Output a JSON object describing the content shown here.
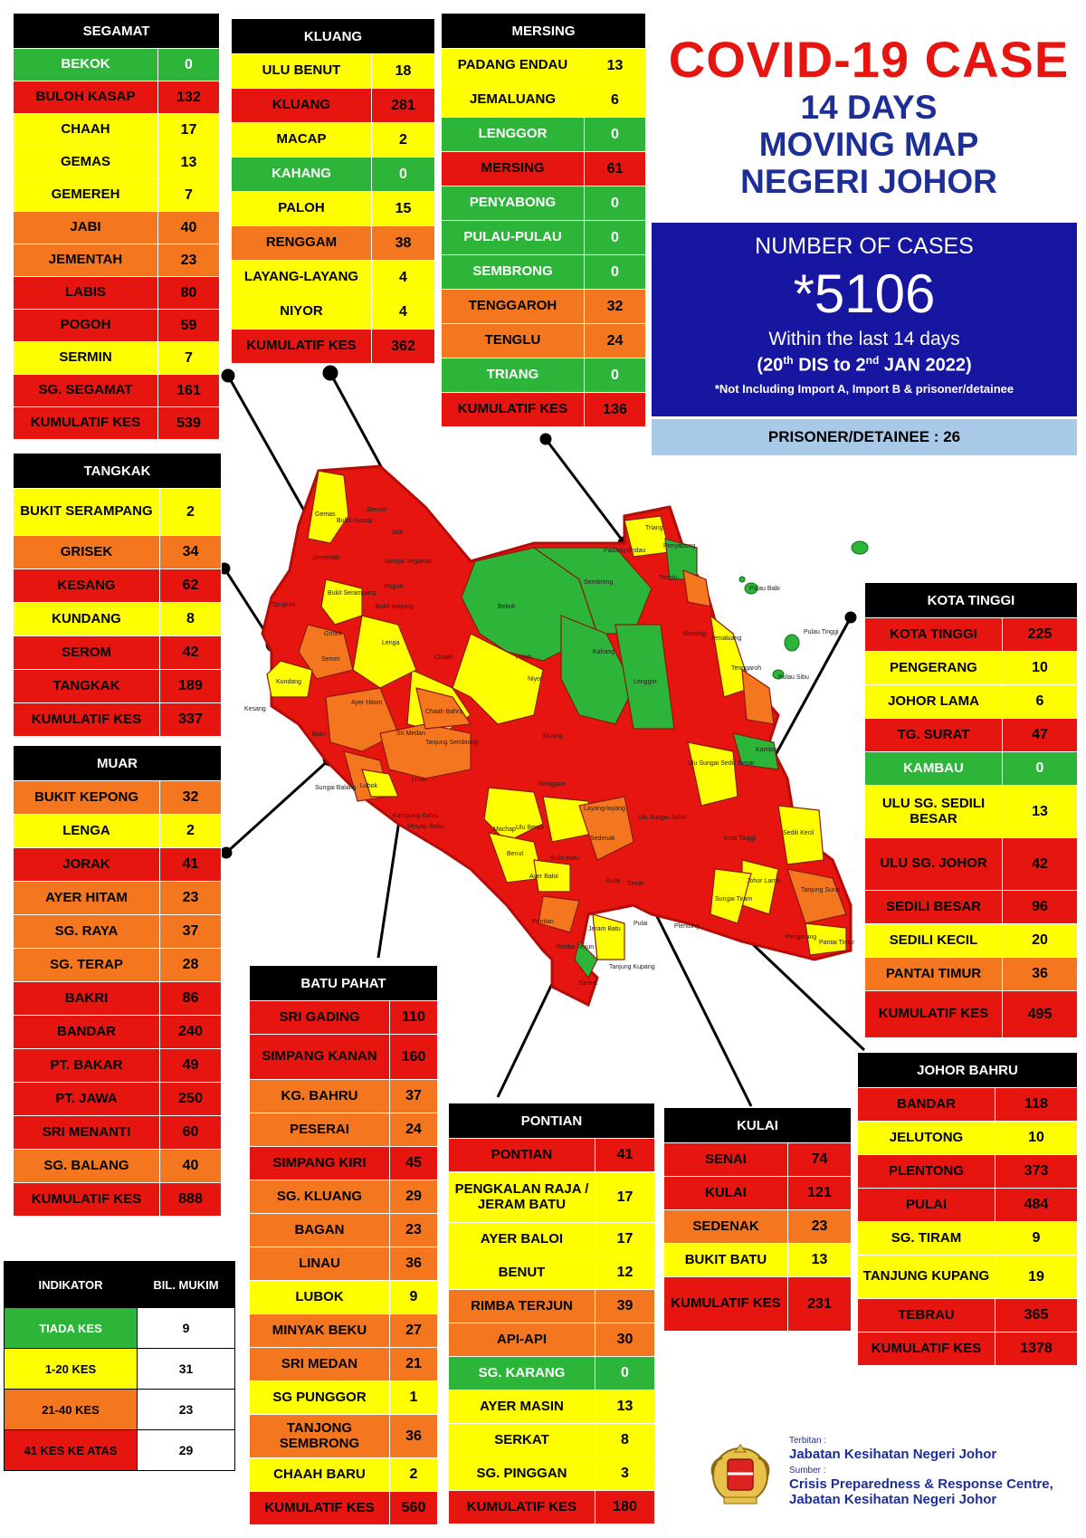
{
  "title": {
    "main": "COVID-19 CASE",
    "line2": "14 DAYS",
    "line3": "MOVING MAP",
    "line4": "NEGERI JOHOR"
  },
  "summary": {
    "label": "NUMBER OF CASES",
    "total": "*5106",
    "period": "Within the last 14 days",
    "date_start_day": "20",
    "date_start_suffix": "th",
    "date_start_month": "DIS to 2",
    "date_end_suffix": "nd",
    "date_end_month": "JAN 2022)",
    "date_open": "(",
    "note": "*Not Including Import A, Import B & prisoner/detainee",
    "prisoner": "PRISONER/DETAINEE : 26"
  },
  "level_colors": {
    "0": "#2db53a",
    "1": "#ffff00",
    "2": "#f47720",
    "3": "#e6150f"
  },
  "districts": {
    "segamat": {
      "name": "SEGAMAT",
      "rows": [
        {
          "n": "BEKOK",
          "v": "0"
        },
        {
          "n": "BULOH KASAP",
          "v": "132"
        },
        {
          "n": "CHAAH",
          "v": "17"
        },
        {
          "n": "GEMAS",
          "v": "13"
        },
        {
          "n": "GEMEREH",
          "v": "7"
        },
        {
          "n": "JABI",
          "v": "40"
        },
        {
          "n": "JEMENTAH",
          "v": "23"
        },
        {
          "n": "LABIS",
          "v": "80"
        },
        {
          "n": "POGOH",
          "v": "59"
        },
        {
          "n": "SERMIN",
          "v": "7"
        },
        {
          "n": "SG. SEGAMAT",
          "v": "161"
        },
        {
          "n": "KUMULATIF KES",
          "v": "539"
        }
      ]
    },
    "kluang": {
      "name": "KLUANG",
      "rows": [
        {
          "n": "ULU BENUT",
          "v": "18"
        },
        {
          "n": "KLUANG",
          "v": "281"
        },
        {
          "n": "MACAP",
          "v": "2"
        },
        {
          "n": "KAHANG",
          "v": "0"
        },
        {
          "n": "PALOH",
          "v": "15"
        },
        {
          "n": "RENGGAM",
          "v": "38"
        },
        {
          "n": "LAYANG-LAYANG",
          "v": "4"
        },
        {
          "n": "NIYOR",
          "v": "4"
        },
        {
          "n": "KUMULATIF KES",
          "v": "362"
        }
      ]
    },
    "mersing": {
      "name": "MERSING",
      "rows": [
        {
          "n": "PADANG ENDAU",
          "v": "13"
        },
        {
          "n": "JEMALUANG",
          "v": "6"
        },
        {
          "n": "LENGGOR",
          "v": "0"
        },
        {
          "n": "MERSING",
          "v": "61"
        },
        {
          "n": "PENYABONG",
          "v": "0"
        },
        {
          "n": "PULAU-PULAU",
          "v": "0"
        },
        {
          "n": "SEMBRONG",
          "v": "0"
        },
        {
          "n": "TENGGAROH",
          "v": "32"
        },
        {
          "n": "TENGLU",
          "v": "24"
        },
        {
          "n": "TRIANG",
          "v": "0"
        },
        {
          "n": "KUMULATIF KES",
          "v": "136"
        }
      ]
    },
    "tangkak": {
      "name": "TANGKAK",
      "rows": [
        {
          "n": "BUKIT SERAMPANG",
          "v": "2"
        },
        {
          "n": "GRISEK",
          "v": "34"
        },
        {
          "n": "KESANG",
          "v": "62"
        },
        {
          "n": "KUNDANG",
          "v": "8"
        },
        {
          "n": "SEROM",
          "v": "42"
        },
        {
          "n": "TANGKAK",
          "v": "189"
        },
        {
          "n": "KUMULATIF KES",
          "v": "337"
        }
      ]
    },
    "muar": {
      "name": "MUAR",
      "rows": [
        {
          "n": "BUKIT KEPONG",
          "v": "32"
        },
        {
          "n": "LENGA",
          "v": "2"
        },
        {
          "n": "JORAK",
          "v": "41"
        },
        {
          "n": "AYER HITAM",
          "v": "23"
        },
        {
          "n": "SG. RAYA",
          "v": "37"
        },
        {
          "n": "SG. TERAP",
          "v": "28"
        },
        {
          "n": "BAKRI",
          "v": "86"
        },
        {
          "n": "BANDAR",
          "v": "240"
        },
        {
          "n": "PT. BAKAR",
          "v": "49"
        },
        {
          "n": "PT. JAWA",
          "v": "250"
        },
        {
          "n": "SRI MENANTI",
          "v": "60"
        },
        {
          "n": "SG. BALANG",
          "v": "40"
        },
        {
          "n": "KUMULATIF KES",
          "v": "888"
        }
      ]
    },
    "batu_pahat": {
      "name": "BATU PAHAT",
      "rows": [
        {
          "n": "SRI GADING",
          "v": "110"
        },
        {
          "n": "SIMPANG KANAN",
          "v": "160"
        },
        {
          "n": "KG. BAHRU",
          "v": "37"
        },
        {
          "n": "PESERAI",
          "v": "24"
        },
        {
          "n": "SIMPANG KIRI",
          "v": "45"
        },
        {
          "n": "SG. KLUANG",
          "v": "29"
        },
        {
          "n": "BAGAN",
          "v": "23"
        },
        {
          "n": "LINAU",
          "v": "36"
        },
        {
          "n": "LUBOK",
          "v": "9"
        },
        {
          "n": "MINYAK BEKU",
          "v": "27"
        },
        {
          "n": "SRI MEDAN",
          "v": "21"
        },
        {
          "n": "SG PUNGGOR",
          "v": "1"
        },
        {
          "n": "TANJONG SEMBRONG",
          "v": "36"
        },
        {
          "n": "CHAAH BARU",
          "v": "2"
        },
        {
          "n": "KUMULATIF KES",
          "v": "560"
        }
      ]
    },
    "pontian": {
      "name": "PONTIAN",
      "rows": [
        {
          "n": "PONTIAN",
          "v": "41"
        },
        {
          "n": "PENGKALAN RAJA / JERAM BATU",
          "v": "17"
        },
        {
          "n": "AYER BALOI",
          "v": "17"
        },
        {
          "n": "BENUT",
          "v": "12"
        },
        {
          "n": "RIMBA TERJUN",
          "v": "39"
        },
        {
          "n": "API-API",
          "v": "30"
        },
        {
          "n": "SG. KARANG",
          "v": "0"
        },
        {
          "n": "AYER MASIN",
          "v": "13"
        },
        {
          "n": "SERKAT",
          "v": "8"
        },
        {
          "n": "SG. PINGGAN",
          "v": "3"
        },
        {
          "n": "KUMULATIF KES",
          "v": "180"
        }
      ]
    },
    "kulai": {
      "name": "KULAI",
      "rows": [
        {
          "n": "SENAI",
          "v": "74"
        },
        {
          "n": "KULAI",
          "v": "121"
        },
        {
          "n": "SEDENAK",
          "v": "23"
        },
        {
          "n": "BUKIT BATU",
          "v": "13"
        },
        {
          "n": "KUMULATIF KES",
          "v": "231"
        }
      ]
    },
    "kota_tinggi": {
      "name": "KOTA TINGGI",
      "rows": [
        {
          "n": "KOTA TINGGI",
          "v": "225"
        },
        {
          "n": "PENGERANG",
          "v": "10"
        },
        {
          "n": "JOHOR LAMA",
          "v": "6"
        },
        {
          "n": "TG. SURAT",
          "v": "47"
        },
        {
          "n": "KAMBAU",
          "v": "0"
        },
        {
          "n": "ULU SG. SEDILI BESAR",
          "v": "13"
        },
        {
          "n": "ULU  SG. JOHOR",
          "v": "42"
        },
        {
          "n": "SEDILI BESAR",
          "v": "96"
        },
        {
          "n": "SEDILI KECIL",
          "v": "20"
        },
        {
          "n": "PANTAI TIMUR",
          "v": "36"
        },
        {
          "n": "KUMULATIF KES",
          "v": "495"
        }
      ]
    },
    "johor_bahru": {
      "name": "JOHOR BAHRU",
      "rows": [
        {
          "n": "BANDAR",
          "v": "118"
        },
        {
          "n": "JELUTONG",
          "v": "10"
        },
        {
          "n": "PLENTONG",
          "v": "373"
        },
        {
          "n": "PULAI",
          "v": "484"
        },
        {
          "n": "SG. TIRAM",
          "v": "9"
        },
        {
          "n": "TANJUNG KUPANG",
          "v": "19"
        },
        {
          "n": "TEBRAU",
          "v": "365"
        },
        {
          "n": "KUMULATIF KES",
          "v": "1378"
        }
      ]
    }
  },
  "legend": {
    "header_indicator": "INDIKATOR",
    "header_count": "BIL. MUKIM",
    "rows": [
      {
        "label": "TIADA KES",
        "count": "9",
        "level": 0
      },
      {
        "label": "1-20 KES",
        "count": "31",
        "level": 1
      },
      {
        "label": "21-40 KES",
        "count": "23",
        "level": 2
      },
      {
        "label": "41 KES KE ATAS",
        "count": "29",
        "level": 3
      }
    ]
  },
  "map_labels": [
    "Gemas",
    "Buloh Kasap",
    "Jabi",
    "Sermin",
    "Sungai Segamat",
    "Jementah",
    "Pogoh",
    "Bekok",
    "Sembrong",
    "Padang Endau",
    "Triang",
    "Penyabong",
    "Tenglu",
    "Pulau Babi",
    "Pulau Tinggi",
    "Pulau Sibu",
    "Jemaluang",
    "Mersing",
    "Tenggaroh",
    "Lenggor",
    "Kahang",
    "Paloh",
    "Niyor",
    "Chaah",
    "Lenga",
    "Bukit Serampang",
    "Grisek",
    "Bukit Kepong",
    "Tangkak",
    "Kesang",
    "Serom",
    "Kundang",
    "Ayer Hitam",
    "Sri Medan",
    "Chaah Bahru",
    "Tanjung Sembrong",
    "Kluang",
    "Renggam",
    "Bakri",
    "Sungai Balang",
    "Lubok",
    "Linau",
    "Kampung Bahru",
    "Minyak Beku",
    "Machap",
    "Ulu Benut",
    "Layang-layang",
    "Sedenak",
    "Bukit Batu",
    "Ayer Baloi",
    "Benut",
    "Pontian",
    "Senai",
    "Kulai",
    "Pulai",
    "Rimba Terjun",
    "Jeram Batu",
    "Serkat",
    "Tanjung Kupang",
    "Ulu Sungai Johor",
    "Ulu Sungai Sedili Besar",
    "Kambau",
    "Kota Tinggi",
    "Sedili Kecil",
    "Johor Lama",
    "Tanjung Surat",
    "Sungai Tiram",
    "Pengerang",
    "Pantai Timur",
    "Plentong"
  ],
  "footer": {
    "published_label": "Terbitan :",
    "published_by": "Jabatan Kesihatan Negeri Johor",
    "source_label": "Sumber :",
    "source_1": "Crisis Preparedness & Response Centre,",
    "source_2": "Jabatan Kesihatan Negeri Johor"
  }
}
